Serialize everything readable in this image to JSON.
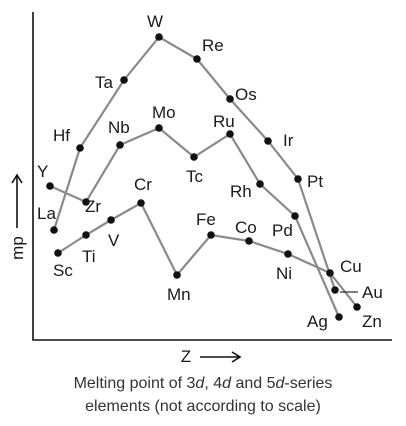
{
  "chart_data": {
    "type": "line",
    "note": "",
    "xlabel": "Z",
    "ylabel": "mp",
    "caption_line1_prefix": "Melting point of 3",
    "caption_line1_d1": "d",
    "caption_line1_mid1": ", 4",
    "caption_line1_d2": "d",
    "caption_line1_mid2": " and 5",
    "caption_line1_d3": "d",
    "caption_line1_suffix": "-series",
    "caption_line2": "elements (not according to scale)",
    "series": [
      {
        "name": "3d",
        "elements": [
          "Sc",
          "Ti",
          "V",
          "Cr",
          "Mn",
          "Fe",
          "Co",
          "Ni",
          "Cu",
          "Zn"
        ],
        "mp": [
          1541,
          1668,
          1910,
          2180,
          1246,
          1538,
          1495,
          1455,
          1085,
          420
        ]
      },
      {
        "name": "4d",
        "elements": [
          "Y",
          "Zr",
          "Nb",
          "Mo",
          "Tc",
          "Ru",
          "Rh",
          "Pd",
          "Ag"
        ],
        "mp": [
          1526,
          1855,
          2477,
          2623,
          2157,
          2334,
          1964,
          1555,
          962
        ]
      },
      {
        "name": "5d",
        "elements": [
          "La",
          "Hf",
          "Ta",
          "W",
          "Re",
          "Os",
          "Ir",
          "Pt",
          "Au"
        ],
        "mp": [
          920,
          2233,
          3017,
          3422,
          3186,
          3033,
          2446,
          1768,
          1064
        ]
      }
    ]
  }
}
